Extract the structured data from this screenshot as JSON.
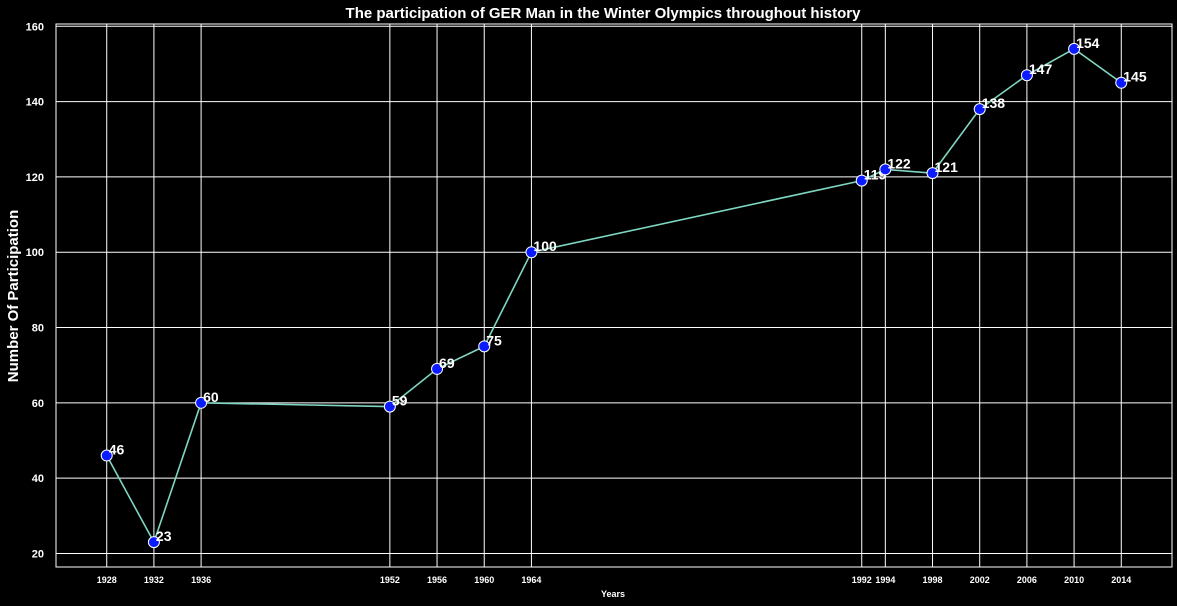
{
  "chart_data": {
    "type": "line",
    "title": "The participation of GER Man in the Winter Olympics throughout history",
    "xlabel": "Years",
    "ylabel": "Number Of Participation",
    "x": [
      1928,
      1932,
      1936,
      1952,
      1956,
      1960,
      1964,
      1992,
      1994,
      1998,
      2002,
      2006,
      2010,
      2014
    ],
    "y": [
      46,
      23,
      60,
      59,
      69,
      75,
      100,
      119,
      122,
      121,
      138,
      147,
      154,
      145
    ],
    "xlim": [
      1923.7,
      2018.3
    ],
    "ylim": [
      16.4,
      160.6
    ],
    "yticks": [
      20,
      40,
      60,
      80,
      100,
      120,
      140,
      160
    ],
    "grid": true,
    "data_labels": true,
    "colors": {
      "background": "#000000",
      "line": "#7fd6c2",
      "marker_fill": "#0a1cff",
      "marker_edge": "#ffffff",
      "grid": "#ffffff",
      "text": "#ffffff"
    }
  }
}
